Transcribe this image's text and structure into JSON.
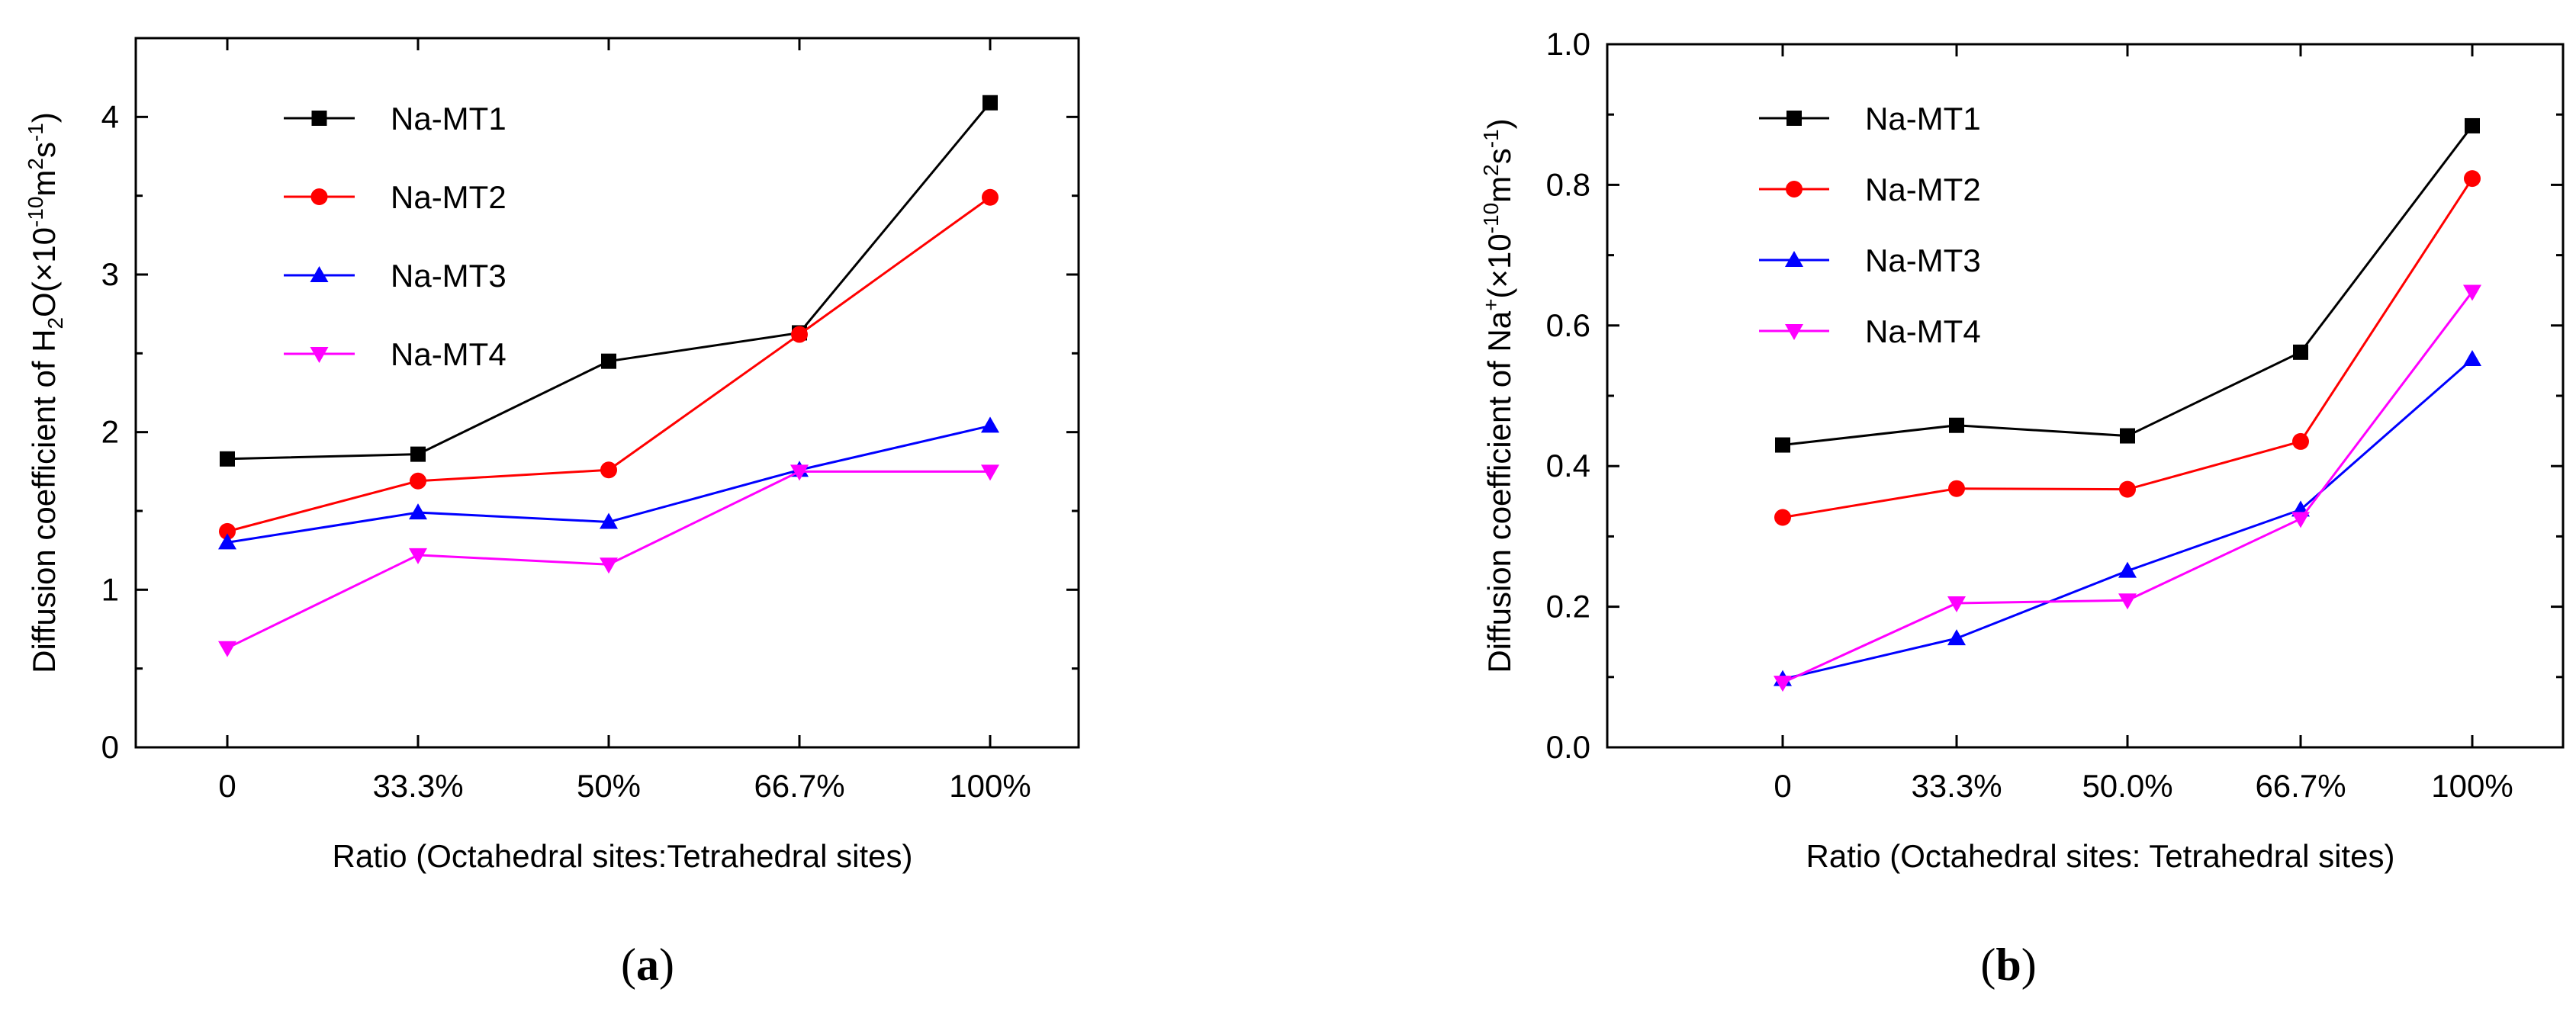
{
  "colors": {
    "axis": "#000000",
    "series": [
      "#000000",
      "#ff0000",
      "#0000ff",
      "#ff00ff"
    ]
  },
  "chart_data": [
    {
      "type": "line",
      "panel": "a",
      "caption": "(a)",
      "title": "",
      "xlabel": "Ratio (Octahedral sites:Tetrahedral sites)",
      "ylabel_parts": {
        "prefix": "Diffusion coefficient of H",
        "sub1": "2",
        "mid": "O(×10",
        "exp1": "-10",
        "m": "m",
        "exp2": "2",
        "s": "s",
        "exp3": "-1",
        "close": ")"
      },
      "categories": [
        "0",
        "33.3%",
        "50%",
        "66.7%",
        "100%"
      ],
      "ylim": [
        0,
        4.5
      ],
      "yticks": [
        "0",
        "1",
        "2",
        "3",
        "4"
      ],
      "ytick_values": [
        0,
        1,
        2,
        3,
        4
      ],
      "legend_position": "top-left",
      "series": [
        {
          "name": "Na-MT1",
          "marker": "square",
          "values": [
            1.83,
            1.86,
            2.45,
            2.63,
            4.09
          ]
        },
        {
          "name": "Na-MT2",
          "marker": "circle",
          "values": [
            1.37,
            1.69,
            1.76,
            2.62,
            3.49
          ]
        },
        {
          "name": "Na-MT3",
          "marker": "triangle-up",
          "values": [
            1.3,
            1.49,
            1.43,
            1.76,
            2.04
          ]
        },
        {
          "name": "Na-MT4",
          "marker": "triangle-down",
          "values": [
            0.63,
            1.22,
            1.16,
            1.75,
            1.75
          ]
        }
      ]
    },
    {
      "type": "line",
      "panel": "b",
      "caption": "(b)",
      "title": "",
      "xlabel": "Ratio (Octahedral sites: Tetrahedral sites)",
      "ylabel_parts": {
        "prefix": "Diffusion coefficient of Na",
        "sup1": "+",
        "mid": "(×10",
        "exp1": "-10",
        "m": "m",
        "exp2": "2",
        "s": "s",
        "exp3": "-1",
        "close": ")"
      },
      "categories": [
        "0",
        "33.3%",
        "50.0%",
        "66.7%",
        "100%"
      ],
      "ylim": [
        0,
        1.0
      ],
      "yticks": [
        "0.0",
        "0.2",
        "0.4",
        "0.6",
        "0.8",
        "1.0"
      ],
      "ytick_values": [
        0,
        0.2,
        0.4,
        0.6,
        0.8,
        1.0
      ],
      "legend_position": "top-left",
      "series": [
        {
          "name": "Na-MT1",
          "marker": "square",
          "values": [
            0.43,
            0.458,
            0.443,
            0.562,
            0.884
          ]
        },
        {
          "name": "Na-MT2",
          "marker": "circle",
          "values": [
            0.327,
            0.368,
            0.367,
            0.435,
            0.809
          ]
        },
        {
          "name": "Na-MT3",
          "marker": "triangle-up",
          "values": [
            0.097,
            0.155,
            0.251,
            0.338,
            0.552
          ]
        },
        {
          "name": "Na-MT4",
          "marker": "triangle-down",
          "values": [
            0.092,
            0.205,
            0.209,
            0.325,
            0.648
          ]
        }
      ]
    }
  ]
}
